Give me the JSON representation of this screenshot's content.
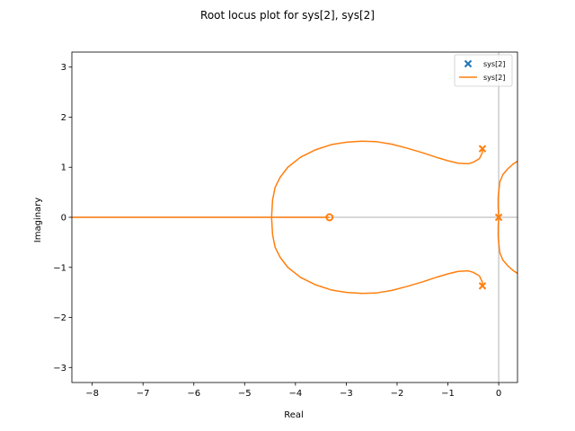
{
  "chart_data": {
    "type": "line",
    "title": "Root locus plot for sys[2], sys[2]",
    "xlabel": "Real",
    "ylabel": "Imaginary",
    "xlim": [
      -8.4,
      0.37
    ],
    "ylim": [
      -3.3,
      3.3
    ],
    "xticks": [
      -8,
      -7,
      -6,
      -5,
      -4,
      -3,
      -2,
      -1,
      0
    ],
    "yticks": [
      -3,
      -2,
      -1,
      0,
      1,
      2,
      3
    ],
    "grid": false,
    "legend_position": "top-right",
    "colors": {
      "poles": "#1f77b4",
      "locus": "#ff7f0e",
      "axis_lines": "#cccccc"
    },
    "legend": [
      {
        "label": "sys[2]",
        "kind": "marker-x",
        "color": "#1f77b4"
      },
      {
        "label": "sys[2]",
        "kind": "line",
        "color": "#ff7f0e"
      }
    ],
    "poles": [
      {
        "x": -0.32,
        "y": 1.37
      },
      {
        "x": -0.32,
        "y": -1.37
      },
      {
        "x": 0.0,
        "y": 0.0
      }
    ],
    "zeros": [
      {
        "x": -3.33,
        "y": 0.0
      }
    ],
    "series": [
      {
        "name": "sys[2]",
        "points": [
          [
            -0.32,
            1.37
          ],
          [
            -0.32,
            1.3
          ],
          [
            -0.38,
            1.17
          ],
          [
            -0.5,
            1.1
          ],
          [
            -0.6,
            1.07
          ],
          [
            -0.8,
            1.08
          ],
          [
            -1.0,
            1.13
          ],
          [
            -1.2,
            1.19
          ],
          [
            -1.5,
            1.29
          ],
          [
            -1.8,
            1.38
          ],
          [
            -2.1,
            1.46
          ],
          [
            -2.4,
            1.51
          ],
          [
            -2.7,
            1.52
          ],
          [
            -3.0,
            1.5
          ],
          [
            -3.3,
            1.45
          ],
          [
            -3.6,
            1.35
          ],
          [
            -3.9,
            1.2
          ],
          [
            -4.15,
            1.0
          ],
          [
            -4.3,
            0.8
          ],
          [
            -4.4,
            0.6
          ],
          [
            -4.45,
            0.35
          ],
          [
            -4.47,
            0.0
          ]
        ]
      },
      {
        "name": "sys[2]",
        "points": [
          [
            -0.32,
            -1.37
          ],
          [
            -0.32,
            -1.3
          ],
          [
            -0.38,
            -1.17
          ],
          [
            -0.5,
            -1.1
          ],
          [
            -0.6,
            -1.07
          ],
          [
            -0.8,
            -1.08
          ],
          [
            -1.0,
            -1.13
          ],
          [
            -1.2,
            -1.19
          ],
          [
            -1.5,
            -1.29
          ],
          [
            -1.8,
            -1.38
          ],
          [
            -2.1,
            -1.46
          ],
          [
            -2.4,
            -1.51
          ],
          [
            -2.7,
            -1.52
          ],
          [
            -3.0,
            -1.5
          ],
          [
            -3.3,
            -1.45
          ],
          [
            -3.6,
            -1.35
          ],
          [
            -3.9,
            -1.2
          ],
          [
            -4.15,
            -1.0
          ],
          [
            -4.3,
            -0.8
          ],
          [
            -4.4,
            -0.6
          ],
          [
            -4.45,
            -0.35
          ],
          [
            -4.47,
            0.0
          ]
        ]
      },
      {
        "name": "sys[2]",
        "points": [
          [
            -3.33,
            0.0
          ],
          [
            -4.47,
            0.0
          ]
        ]
      },
      {
        "name": "sys[2]",
        "points": [
          [
            -4.47,
            0.0
          ],
          [
            -8.4,
            0.0
          ]
        ]
      },
      {
        "name": "sys[2]",
        "points": [
          [
            0.0,
            0.0
          ],
          [
            -0.01,
            0.2
          ],
          [
            -0.01,
            0.4
          ],
          [
            0.02,
            0.7
          ],
          [
            0.08,
            0.85
          ],
          [
            0.18,
            0.97
          ],
          [
            0.28,
            1.06
          ],
          [
            0.37,
            1.12
          ]
        ]
      },
      {
        "name": "sys[2]",
        "points": [
          [
            0.0,
            0.0
          ],
          [
            -0.01,
            -0.2
          ],
          [
            -0.01,
            -0.4
          ],
          [
            0.02,
            -0.7
          ],
          [
            0.08,
            -0.85
          ],
          [
            0.18,
            -0.97
          ],
          [
            0.28,
            -1.06
          ],
          [
            0.37,
            -1.12
          ]
        ]
      }
    ]
  }
}
